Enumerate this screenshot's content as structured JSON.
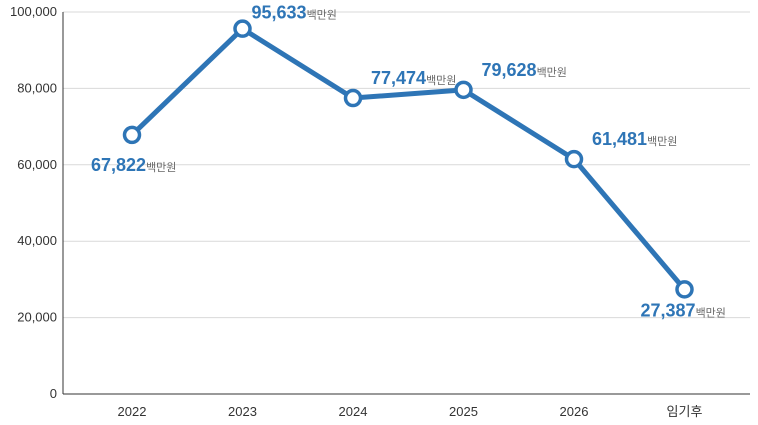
{
  "chart_data": {
    "type": "line",
    "categories": [
      "2022",
      "2023",
      "2024",
      "2025",
      "2026",
      "임기후"
    ],
    "series": [
      {
        "values": [
          67822,
          95633,
          77474,
          79628,
          61481,
          27387
        ],
        "value_labels": [
          "67,822",
          "95,633",
          "77,474",
          "79,628",
          "61,481",
          "27,387"
        ]
      }
    ],
    "value_unit": "백만원",
    "ylim": [
      0,
      100000
    ],
    "y_ticks": [
      0,
      20000,
      40000,
      60000,
      80000,
      100000
    ],
    "y_tick_labels": [
      "0",
      "20,000",
      "40,000",
      "60,000",
      "80,000",
      "100,000"
    ],
    "label_positions": [
      "below",
      "above",
      "above",
      "above",
      "above",
      "below"
    ],
    "grid": true,
    "title": "",
    "xlabel": "",
    "ylabel": "",
    "colors": {
      "line": "#2e75b6",
      "label": "#2e75b6",
      "unit": "#666666",
      "marker_fill": "#ffffff"
    }
  }
}
